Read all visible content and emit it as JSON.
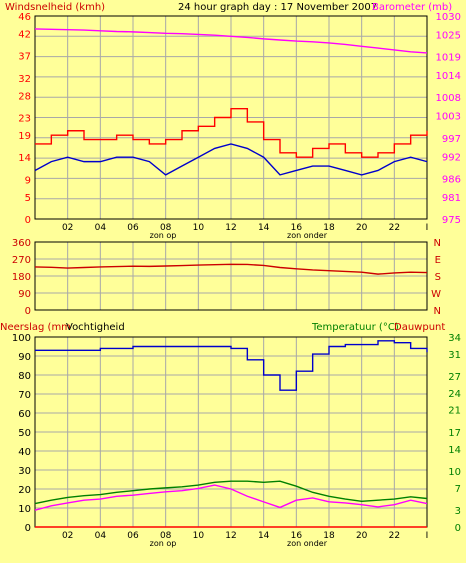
{
  "title": "24 hour graph day : 17 November 2007",
  "colors": {
    "background": "#FFFF99",
    "frame": "#000000",
    "grid": "#A8A8A8",
    "wind_gust": "#FF0000",
    "wind_speed": "#0000CC",
    "barometer": "#FF00FF",
    "wind_direction": "#CC0000",
    "humidity": "#0000CC",
    "rain": "#FF0000",
    "temperature": "#008000",
    "dewpoint": "#FF00FF"
  },
  "x_ticks": [
    "02",
    "04",
    "06",
    "08",
    "10",
    "12",
    "14",
    "16",
    "18",
    "20",
    "22",
    "I"
  ],
  "sun_labels": {
    "sunrise": "zon op",
    "sunset": "zon onder"
  },
  "chart_data": [
    {
      "type": "line",
      "ylabel_left": "Windsnelheid (kmh)",
      "ylabel_right": "Barometer (mb)",
      "yticks_left": [
        0,
        5,
        9,
        14,
        19,
        23,
        28,
        32,
        37,
        42,
        46
      ],
      "yticks_right": [
        975,
        981,
        986,
        992,
        997,
        1003,
        1008,
        1014,
        1019,
        1025,
        1030
      ],
      "ylim_left": [
        0,
        46
      ],
      "ylim_right": [
        975,
        1030
      ],
      "x_hours": [
        0,
        1,
        2,
        3,
        4,
        5,
        6,
        7,
        8,
        9,
        10,
        11,
        12,
        13,
        14,
        15,
        16,
        17,
        18,
        19,
        20,
        21,
        22,
        23,
        24
      ],
      "series": [
        {
          "key": "gust",
          "values": [
            17,
            19,
            20,
            18,
            18,
            19,
            18,
            17,
            18,
            20,
            21,
            23,
            25,
            22,
            18,
            15,
            14,
            16,
            17,
            15,
            14,
            15,
            17,
            19,
            20
          ]
        },
        {
          "key": "speed",
          "values": [
            11,
            13,
            14,
            13,
            13,
            14,
            14,
            13,
            10,
            12,
            14,
            16,
            17,
            16,
            14,
            10,
            11,
            12,
            12,
            11,
            10,
            11,
            13,
            14,
            13
          ]
        },
        {
          "key": "barometer",
          "axis": "right",
          "values": [
            1026.5,
            1026.4,
            1026.3,
            1026.2,
            1026,
            1025.8,
            1025.7,
            1025.5,
            1025.3,
            1025.2,
            1025,
            1024.8,
            1024.5,
            1024.2,
            1023.8,
            1023.5,
            1023.2,
            1023,
            1022.7,
            1022.3,
            1021.8,
            1021.3,
            1020.8,
            1020.3,
            1020
          ]
        }
      ]
    },
    {
      "type": "line",
      "yticks_left": [
        0,
        90,
        180,
        270,
        360
      ],
      "ylim_left": [
        0,
        360
      ],
      "yticks_right": [
        "N",
        "W",
        "S",
        "E",
        "N"
      ],
      "x_hours": [
        0,
        1,
        2,
        3,
        4,
        5,
        6,
        7,
        8,
        9,
        10,
        11,
        12,
        13,
        14,
        15,
        16,
        17,
        18,
        19,
        20,
        21,
        22,
        23,
        24
      ],
      "series": [
        {
          "key": "wind_direction",
          "values": [
            228,
            226,
            222,
            225,
            228,
            230,
            232,
            231,
            233,
            235,
            238,
            240,
            242,
            241,
            236,
            225,
            218,
            212,
            208,
            204,
            200,
            190,
            196,
            200,
            198
          ]
        }
      ]
    },
    {
      "type": "line",
      "ylabel_left": "Neerslag (mm",
      "ylabel_left2": "Vochtigheid",
      "ylabel_right": "Temperatuur (°C)",
      "ylabel_right2": "Dauwpunt",
      "yticks_left": [
        0,
        10,
        20,
        30,
        40,
        50,
        60,
        70,
        80,
        90,
        100
      ],
      "ylim_left": [
        0,
        100
      ],
      "yticks_right": [
        0,
        3,
        7,
        10,
        14,
        17,
        21,
        24,
        27,
        31,
        34
      ],
      "ylim_right": [
        0,
        34
      ],
      "x_hours": [
        0,
        1,
        2,
        3,
        4,
        5,
        6,
        7,
        8,
        9,
        10,
        11,
        12,
        13,
        14,
        15,
        16,
        17,
        18,
        19,
        20,
        21,
        22,
        23,
        24
      ],
      "series": [
        {
          "key": "humidity",
          "axis": "left",
          "values": [
            93,
            93,
            93,
            93,
            94,
            94,
            95,
            95,
            95,
            95,
            95,
            95,
            94,
            88,
            80,
            72,
            82,
            91,
            95,
            96,
            96,
            98,
            97,
            94,
            92
          ]
        },
        {
          "key": "rain",
          "axis": "left",
          "values": [
            0,
            0,
            0,
            0,
            0,
            0,
            0,
            0,
            0,
            0,
            0,
            0,
            0,
            0,
            0,
            0,
            0,
            0,
            0,
            0,
            0,
            0,
            0,
            0,
            0
          ]
        },
        {
          "key": "temperature",
          "axis": "right",
          "values": [
            4.2,
            4.8,
            5.3,
            5.6,
            5.8,
            6.2,
            6.5,
            6.8,
            7.0,
            7.2,
            7.5,
            8.0,
            8.2,
            8.2,
            8.0,
            8.2,
            7.3,
            6.2,
            5.5,
            5.0,
            4.6,
            4.8,
            5.0,
            5.4,
            5.1
          ]
        },
        {
          "key": "dewpoint",
          "axis": "right",
          "values": [
            3.0,
            3.8,
            4.3,
            4.8,
            5.0,
            5.5,
            5.7,
            6.0,
            6.3,
            6.5,
            6.9,
            7.5,
            6.8,
            5.5,
            4.5,
            3.5,
            4.8,
            5.2,
            4.5,
            4.3,
            4.0,
            3.6,
            4.0,
            4.8,
            4.2
          ]
        }
      ]
    }
  ]
}
